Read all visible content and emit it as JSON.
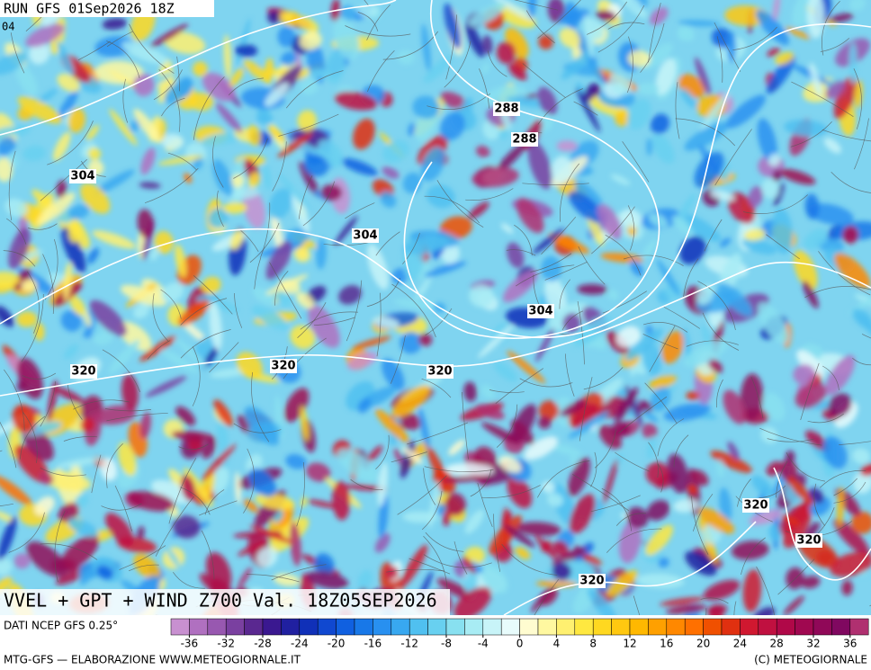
{
  "header": {
    "run": "RUN GFS 01Sep2026 18Z",
    "corner": "04"
  },
  "map": {
    "contour_labels": [
      304,
      288,
      288,
      304,
      304,
      320,
      320,
      320,
      320,
      320,
      320
    ]
  },
  "footer": {
    "title": "VVEL + GPT + WIND Z700 Val. 18Z05SEP2026",
    "source": "DATI NCEP GFS 0.25°",
    "credit": "MTG-GFS — ELABORAZIONE WWW.METEOGIORNALE.IT",
    "copyright": "(C) METEOGIORNALE"
  },
  "colorbar": {
    "ticks": [
      -36,
      -32,
      -28,
      -24,
      -20,
      -16,
      -12,
      -8,
      -4,
      0,
      4,
      8,
      12,
      16,
      20,
      24,
      28,
      32,
      36
    ],
    "colors": [
      "#c890d0",
      "#b070c0",
      "#9858b0",
      "#7a40a0",
      "#5a2890",
      "#3a1890",
      "#2020a0",
      "#1030b8",
      "#1048d0",
      "#1060e0",
      "#1878e8",
      "#2890f0",
      "#38a8f0",
      "#50c0f0",
      "#68d0f0",
      "#88e0f0",
      "#a8ecf4",
      "#c8f4f8",
      "#e8fcfc",
      "#fffcd0",
      "#fff8a0",
      "#fff070",
      "#ffe840",
      "#ffd820",
      "#ffc810",
      "#ffb800",
      "#ffa000",
      "#ff8800",
      "#ff7000",
      "#f05000",
      "#e03010",
      "#d01830",
      "#c01040",
      "#b00848",
      "#a00850",
      "#900858",
      "#800860",
      "#b03070"
    ]
  }
}
